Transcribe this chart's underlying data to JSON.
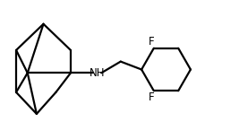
{
  "background_color": "#ffffff",
  "line_color": "#000000",
  "line_width": 1.6,
  "text_color": "#000000",
  "font_size": 8.5,
  "NH_label": "NH",
  "F_top_label": "F",
  "F_bottom_label": "F",
  "xlim": [
    0,
    10
  ],
  "ylim": [
    0,
    6
  ]
}
